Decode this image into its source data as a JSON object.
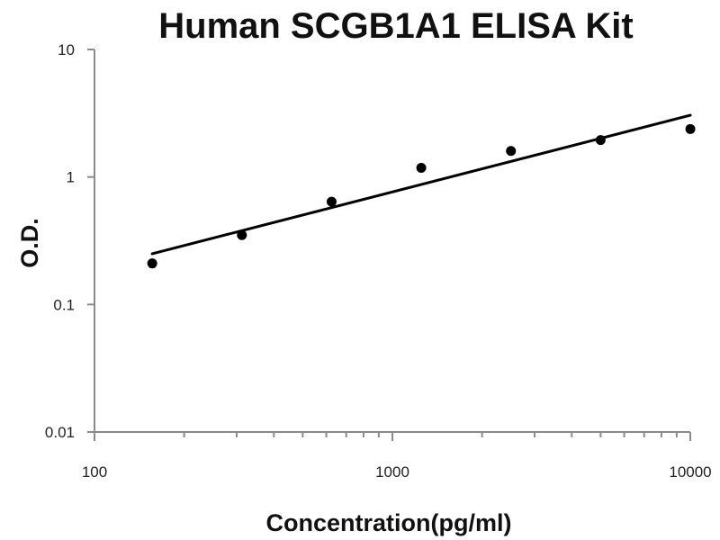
{
  "chart_data": {
    "type": "scatter",
    "title": "Human SCGB1A1 ELISA Kit",
    "xlabel": "Concentration(pg/ml)",
    "ylabel": "O.D.",
    "x_scale": "log",
    "y_scale": "log",
    "xlim": [
      100,
      10000
    ],
    "ylim": [
      0.01,
      10
    ],
    "x_ticks": [
      "100",
      "1000",
      "10000"
    ],
    "y_ticks": [
      "0.01",
      "0.1",
      "1",
      "10"
    ],
    "grid": false,
    "legend": "none",
    "points": [
      {
        "x": 156.25,
        "y": 0.21
      },
      {
        "x": 312.5,
        "y": 0.35
      },
      {
        "x": 625,
        "y": 0.64
      },
      {
        "x": 1250,
        "y": 1.18
      },
      {
        "x": 2500,
        "y": 1.6
      },
      {
        "x": 5000,
        "y": 1.95
      },
      {
        "x": 10000,
        "y": 2.38
      }
    ],
    "trendline": {
      "type": "power",
      "x": [
        156.25,
        10000
      ],
      "y": [
        0.25,
        3.05
      ]
    },
    "colors": {
      "points": "#000000",
      "trendline": "#000000",
      "axes": "#8a8a8a"
    }
  }
}
